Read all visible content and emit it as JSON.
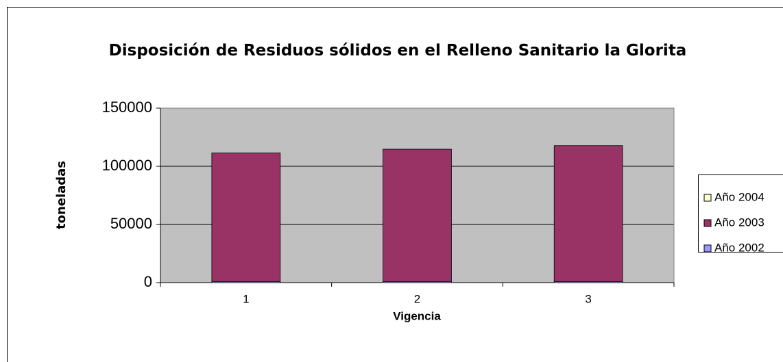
{
  "chart_data": {
    "type": "stacked_bar",
    "title": "Disposición de Residuos sólidos en el Relleno Sanitario la Glorita",
    "x_label": "Vigencia",
    "y_label": "toneladas",
    "categories": [
      "1",
      "2",
      "3"
    ],
    "series": [
      {
        "name": "Año 2002",
        "color": "#9999ff",
        "values": [
          1000,
          1000,
          1000
        ]
      },
      {
        "name": "Año 2003",
        "color": "#993366",
        "values": [
          110500,
          113700,
          116800
        ]
      },
      {
        "name": "Año 2004",
        "color": "#ffffcc",
        "values": [
          0,
          0,
          0
        ]
      }
    ],
    "ylim": [
      0,
      150000
    ],
    "yticks": [
      0,
      50000,
      100000,
      150000
    ],
    "grid": true,
    "legend": "right"
  }
}
